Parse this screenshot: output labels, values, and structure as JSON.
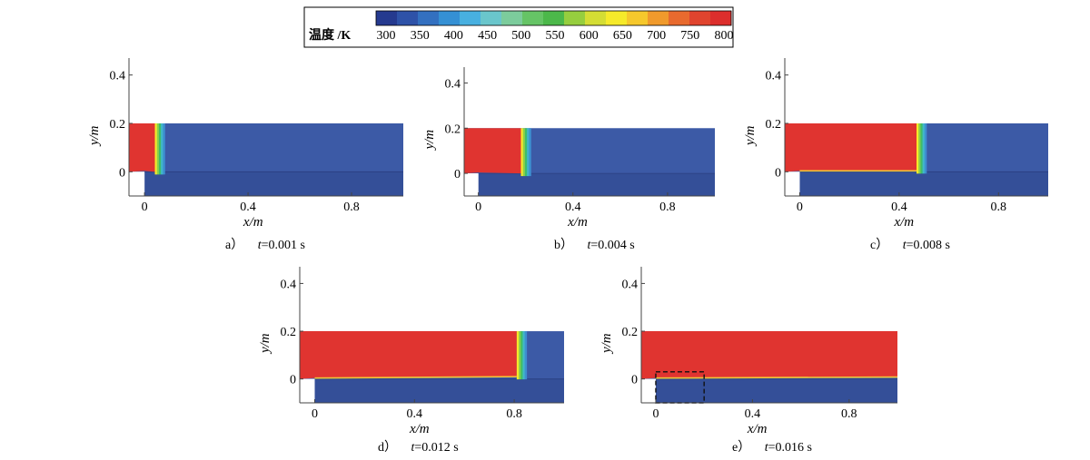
{
  "colorbar": {
    "title": "温度 /K",
    "ticks": [
      "300",
      "350",
      "400",
      "450",
      "500",
      "550",
      "600",
      "650",
      "700",
      "750",
      "800"
    ],
    "colors": [
      "#253a8f",
      "#2e52a8",
      "#3370c0",
      "#3590d4",
      "#48b0e0",
      "#6ac6cc",
      "#7ccc9c",
      "#66c466",
      "#4cb84a",
      "#96ce3e",
      "#d4dd34",
      "#f6ea2a",
      "#f6c82c",
      "#f09a2c",
      "#e86a2e",
      "#e0442e",
      "#dc2e2c"
    ]
  },
  "colors": {
    "hot": "#e03430",
    "cold": "#3c5aa6",
    "cold_dark": "#344f98",
    "front": [
      "#f6e92a",
      "#8ed04a",
      "#3fbd68",
      "#41b8c8",
      "#3d8fd0"
    ]
  },
  "chart_data": [
    {
      "type": "heatmap",
      "panel": "a)",
      "caption_prefix": "a）",
      "caption_var": "t",
      "caption_value": "=0.001 s",
      "time_s": 0.001,
      "xlabel": "x/m",
      "ylabel": "y/m",
      "xticks": [
        "0",
        "0.4",
        "0.8"
      ],
      "yticks": [
        "0",
        "0.2",
        "0.4"
      ],
      "xlim": [
        -0.06,
        1.0
      ],
      "ylim": [
        -0.1,
        0.47
      ],
      "hot_region_x_end_m": 0.04,
      "interface_slope": 0,
      "dashed_box": null
    },
    {
      "type": "heatmap",
      "panel": "b)",
      "caption_prefix": "b）",
      "caption_var": "t",
      "caption_value": "=0.004 s",
      "time_s": 0.004,
      "xlabel": "x/m",
      "ylabel": "y/m",
      "xticks": [
        "0",
        "0.4",
        "0.8"
      ],
      "yticks": [
        "0",
        "0.2",
        "0.4"
      ],
      "xlim": [
        -0.06,
        1.0
      ],
      "ylim": [
        -0.1,
        0.47
      ],
      "hot_region_x_end_m": 0.18,
      "interface_slope": 0,
      "dashed_box": null
    },
    {
      "type": "heatmap",
      "panel": "c)",
      "caption_prefix": "c）",
      "caption_var": "t",
      "caption_value": "=0.008 s",
      "time_s": 0.008,
      "xlabel": "x/m",
      "ylabel": "y/m",
      "xticks": [
        "0",
        "0.4",
        "0.8"
      ],
      "yticks": [
        "0",
        "0.2",
        "0.4"
      ],
      "xlim": [
        -0.06,
        1.0
      ],
      "ylim": [
        -0.1,
        0.47
      ],
      "hot_region_x_end_m": 0.47,
      "interface_slope": 0.004,
      "dashed_box": null
    },
    {
      "type": "heatmap",
      "panel": "d)",
      "caption_prefix": "d）",
      "caption_var": "t",
      "caption_value": "=0.012 s",
      "time_s": 0.012,
      "xlabel": "x/m",
      "ylabel": "y/m",
      "xticks": [
        "0",
        "0.4",
        "0.8"
      ],
      "yticks": [
        "0",
        "0.2",
        "0.4"
      ],
      "xlim": [
        -0.06,
        1.0
      ],
      "ylim": [
        -0.1,
        0.47
      ],
      "hot_region_x_end_m": 0.81,
      "interface_slope": 0.006,
      "dashed_box": null
    },
    {
      "type": "heatmap",
      "panel": "e)",
      "caption_prefix": "e）",
      "caption_var": "t",
      "caption_value": "=0.016 s",
      "time_s": 0.016,
      "xlabel": "x/m",
      "ylabel": "y/m",
      "xticks": [
        "0",
        "0.4",
        "0.8"
      ],
      "yticks": [
        "0",
        "0.2",
        "0.4"
      ],
      "xlim": [
        -0.06,
        1.0
      ],
      "ylim": [
        -0.1,
        0.47
      ],
      "hot_region_x_end_m": 1.0,
      "interface_slope": 0.004,
      "dashed_box": {
        "x0": 0.0,
        "x1": 0.2,
        "y0": -0.1,
        "y1": 0.03
      }
    }
  ]
}
